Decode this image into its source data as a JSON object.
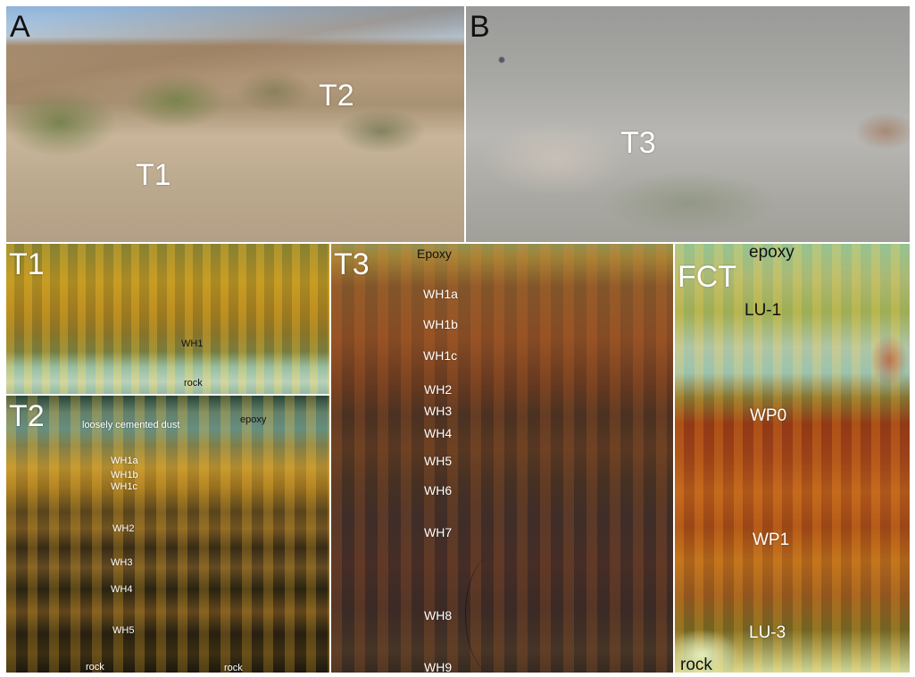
{
  "panels": {
    "A": {
      "letter": "A",
      "labels": [
        "T2",
        "T1"
      ]
    },
    "B": {
      "letter": "B",
      "labels": [
        "T3"
      ]
    },
    "T1": {
      "title": "T1",
      "labels": [
        "WH1",
        "rock"
      ]
    },
    "T2": {
      "title": "T2",
      "labels": [
        "loosely cemented dust",
        "epoxy",
        "WH1a",
        "WH1b",
        "WH1c",
        "WH2",
        "WH3",
        "WH4",
        "WH5",
        "rock",
        "rock"
      ]
    },
    "T3": {
      "title": "T3",
      "labels": [
        "Epoxy",
        "WH1a",
        "WH1b",
        "WH1c",
        "WH2",
        "WH3",
        "WH4",
        "WH5",
        "WH6",
        "WH7",
        "WH8",
        "WH9"
      ]
    },
    "FCT": {
      "title": "FCT",
      "labels": [
        "epoxy",
        "LU-1",
        "WP0",
        "WP1",
        "LU-3",
        "rock"
      ]
    }
  }
}
